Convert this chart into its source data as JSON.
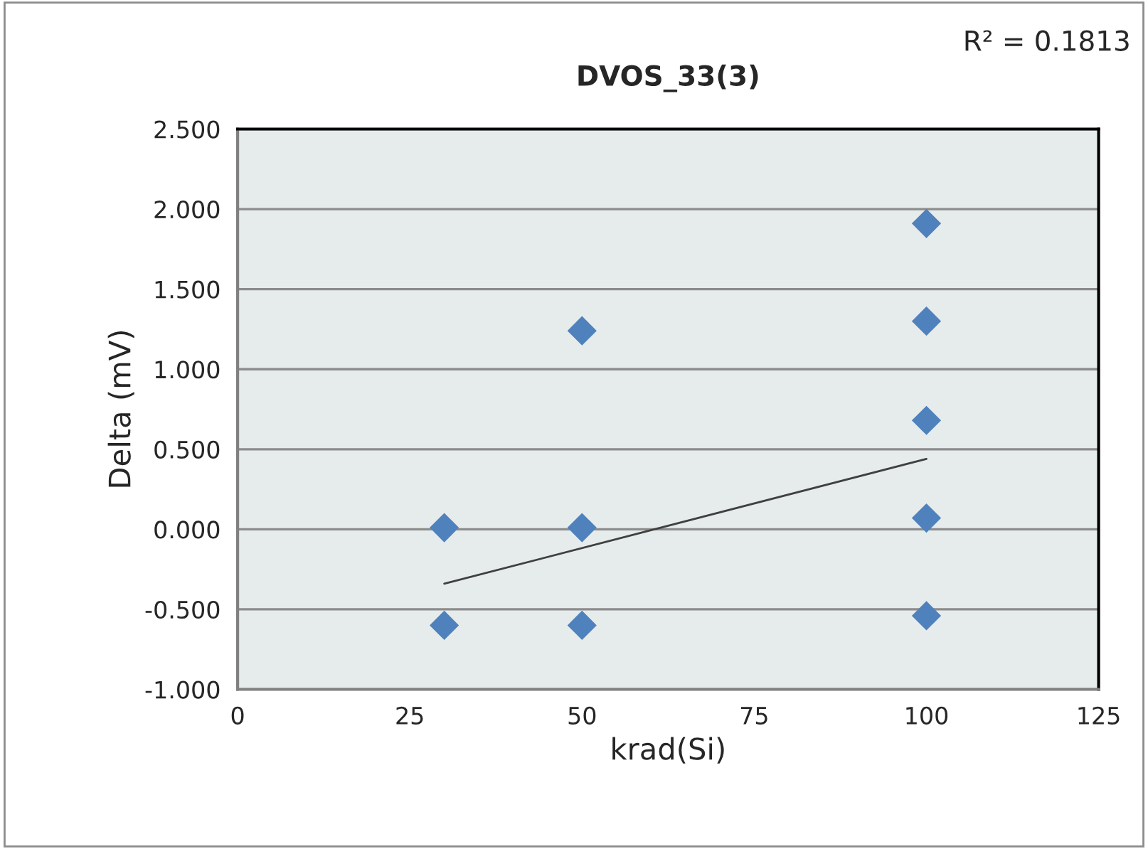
{
  "chart_data": {
    "type": "scatter",
    "title": "DVOS_33(3)",
    "xlabel": "krad(Si)",
    "ylabel": "Delta (mV)",
    "annotations": [
      "R² = 0.1813"
    ],
    "series": [
      {
        "color": "#4f81bd",
        "marker": "diamond",
        "x": [
          30,
          30,
          50,
          50,
          50,
          100,
          100,
          100,
          100,
          100
        ],
        "values": [
          0.01,
          -0.6,
          1.24,
          0.01,
          -0.6,
          1.91,
          1.3,
          0.68,
          0.07,
          -0.54
        ]
      },
      {
        "type": "line",
        "color": "#404040",
        "marker": "none",
        "line_style": "solid",
        "x": [
          30,
          100
        ],
        "values": [
          -0.34,
          0.44
        ]
      }
    ],
    "xlim": [
      0,
      125
    ],
    "xticks": [
      0,
      25,
      50,
      75,
      100,
      125
    ],
    "ylim": [
      -1.0,
      2.5
    ],
    "yticks": [
      {
        "value": -1.0,
        "label": "-1.000"
      },
      {
        "value": -0.5,
        "label": "-0.500"
      },
      {
        "value": 0.0,
        "label": "0.000"
      },
      {
        "value": 0.5,
        "label": "0.500"
      },
      {
        "value": 1.0,
        "label": "1.000"
      },
      {
        "value": 1.5,
        "label": "1.500"
      },
      {
        "value": 2.0,
        "label": "2.000"
      },
      {
        "value": 2.5,
        "label": "2.500"
      }
    ],
    "grid": "y",
    "legend": false
  }
}
